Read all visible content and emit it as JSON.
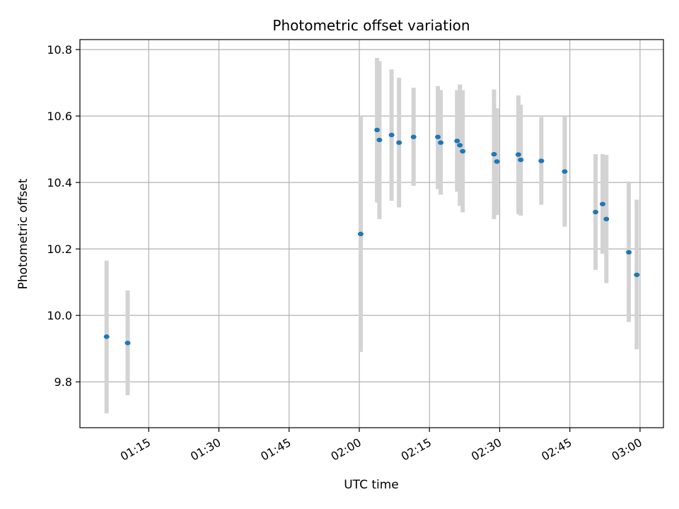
{
  "chart_data": {
    "type": "scatter",
    "title": "Photometric offset variation",
    "xlabel": "UTC time",
    "ylabel": "Photometric offset",
    "x_ticks": [
      "01:15",
      "01:30",
      "01:45",
      "02:00",
      "02:15",
      "02:30",
      "02:45",
      "03:00"
    ],
    "x_tick_minutes": [
      75,
      90,
      105,
      120,
      135,
      150,
      165,
      180
    ],
    "y_ticks": [
      "9.8",
      "10.0",
      "10.2",
      "10.4",
      "10.6",
      "10.8"
    ],
    "xlim_minutes": [
      60.3,
      185.0
    ],
    "ylim": [
      9.662,
      10.83
    ],
    "grid": true,
    "colors": {
      "point": "#1f77b4",
      "errorbar": "#d3d3d3",
      "grid": "#b0b0b0"
    },
    "points": [
      {
        "x": "01:06",
        "y": 9.936,
        "ylow": 9.705,
        "yhigh": 10.165
      },
      {
        "x": "01:10.5",
        "y": 9.917,
        "ylow": 9.76,
        "yhigh": 10.075
      },
      {
        "x": "02:00.3",
        "y": 10.245,
        "ylow": 9.89,
        "yhigh": 10.6
      },
      {
        "x": "02:03.8",
        "y": 10.558,
        "ylow": 10.34,
        "yhigh": 10.775
      },
      {
        "x": "02:04.3",
        "y": 10.528,
        "ylow": 10.29,
        "yhigh": 10.765
      },
      {
        "x": "02:06.9",
        "y": 10.543,
        "ylow": 10.345,
        "yhigh": 10.74
      },
      {
        "x": "02:08.5",
        "y": 10.52,
        "ylow": 10.325,
        "yhigh": 10.715
      },
      {
        "x": "02:11.6",
        "y": 10.537,
        "ylow": 10.39,
        "yhigh": 10.685
      },
      {
        "x": "02:16.8",
        "y": 10.537,
        "ylow": 10.38,
        "yhigh": 10.69
      },
      {
        "x": "02:17.4",
        "y": 10.52,
        "ylow": 10.363,
        "yhigh": 10.678
      },
      {
        "x": "02:20.9",
        "y": 10.525,
        "ylow": 10.372,
        "yhigh": 10.678
      },
      {
        "x": "02:21.5",
        "y": 10.512,
        "ylow": 10.33,
        "yhigh": 10.695
      },
      {
        "x": "02:22.1",
        "y": 10.494,
        "ylow": 10.31,
        "yhigh": 10.678
      },
      {
        "x": "02:28.8",
        "y": 10.485,
        "ylow": 10.29,
        "yhigh": 10.68
      },
      {
        "x": "02:29.4",
        "y": 10.463,
        "ylow": 10.302,
        "yhigh": 10.623
      },
      {
        "x": "02:34",
        "y": 10.484,
        "ylow": 10.305,
        "yhigh": 10.662
      },
      {
        "x": "02:34.5",
        "y": 10.468,
        "ylow": 10.3,
        "yhigh": 10.634
      },
      {
        "x": "02:38.9",
        "y": 10.465,
        "ylow": 10.333,
        "yhigh": 10.597
      },
      {
        "x": "02:43.9",
        "y": 10.433,
        "ylow": 10.267,
        "yhigh": 10.6
      },
      {
        "x": "02:50.5",
        "y": 10.311,
        "ylow": 10.137,
        "yhigh": 10.485
      },
      {
        "x": "02:52",
        "y": 10.335,
        "ylow": 10.185,
        "yhigh": 10.485
      },
      {
        "x": "02:52.8",
        "y": 10.29,
        "ylow": 10.097,
        "yhigh": 10.483
      },
      {
        "x": "02:57.6",
        "y": 10.19,
        "ylow": 9.98,
        "yhigh": 10.403
      },
      {
        "x": "02:59.3",
        "y": 10.122,
        "ylow": 9.898,
        "yhigh": 10.348
      }
    ]
  }
}
